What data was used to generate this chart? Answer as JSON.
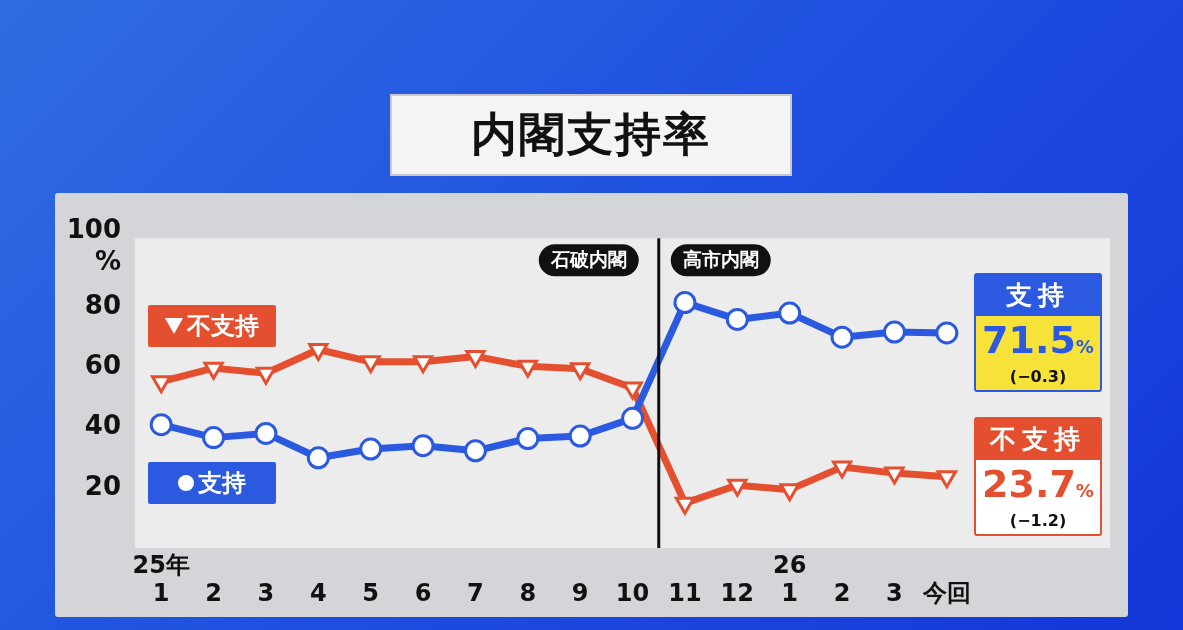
{
  "chart_data": {
    "type": "line",
    "title": "内閣支持率",
    "categories": [
      "25年\n1",
      "2",
      "3",
      "4",
      "5",
      "6",
      "7",
      "8",
      "9",
      "10",
      "11",
      "12",
      "26\n1",
      "2",
      "3",
      "今回"
    ],
    "ylim": [
      0,
      103
    ],
    "yticks": [
      20,
      40,
      60,
      80,
      {
        "value": 100,
        "label": "100\n%"
      }
    ],
    "series": [
      {
        "name": "不支持",
        "color": "#e4502f",
        "marker": "triangle",
        "values": [
          55.3,
          59.8,
          58.1,
          66.0,
          61.9,
          61.9,
          63.7,
          60.4,
          59.6,
          53.2,
          14.9,
          20.9,
          19.4,
          26.9,
          24.9,
          23.7
        ],
        "value_labels": [
          null,
          null,
          null,
          null,
          null,
          null,
          null,
          null,
          null,
          null,
          null,
          null,
          null,
          null,
          null,
          "23.7%"
        ]
      },
      {
        "name": "支持",
        "color": "#2b5ae0",
        "marker": "circle",
        "values": [
          41.0,
          36.7,
          38.1,
          30.0,
          32.9,
          34.0,
          32.3,
          36.4,
          37.2,
          43.1,
          81.6,
          76.0,
          78.1,
          70.1,
          71.8,
          71.5
        ],
        "value_labels": [
          null,
          null,
          null,
          null,
          null,
          null,
          null,
          null,
          null,
          null,
          null,
          null,
          null,
          null,
          null,
          "71.5%"
        ]
      }
    ],
    "annotations": [
      "石破内閣",
      "高市内閣",
      "(−0.3)",
      "(−1.2)"
    ],
    "legend": "left",
    "grid": false,
    "line_style": "solid"
  }
}
